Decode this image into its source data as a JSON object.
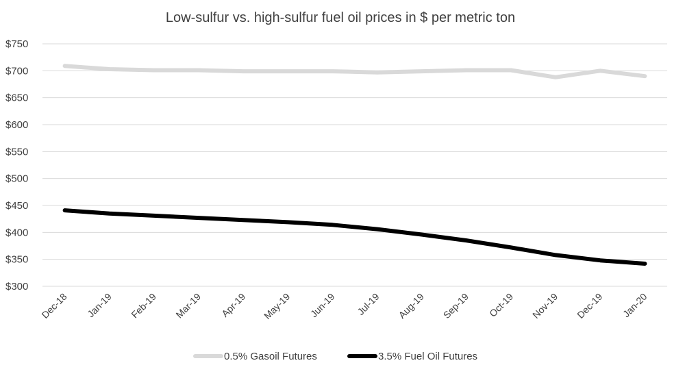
{
  "chart_data": {
    "type": "line",
    "title": "Low-sulfur vs. high-sulfur fuel oil prices in $ per metric ton",
    "xlabel": "",
    "ylabel": "",
    "categories": [
      "Dec-18",
      "Jan-19",
      "Feb-19",
      "Mar-19",
      "Apr-19",
      "May-19",
      "Jun-19",
      "Jul-19",
      "Aug-19",
      "Sep-19",
      "Oct-19",
      "Nov-19",
      "Dec-19",
      "Jan-20"
    ],
    "y_ticks": [
      "$300",
      "$350",
      "$400",
      "$450",
      "$500",
      "$550",
      "$600",
      "$650",
      "$700",
      "$750"
    ],
    "ylim": [
      300,
      750
    ],
    "grid": true,
    "legend_position": "bottom",
    "series": [
      {
        "name": "0.5% Gasoil Futures",
        "color": "#d9d9d9",
        "values": [
          709,
          703,
          701,
          701,
          699,
          699,
          699,
          697,
          699,
          701,
          701,
          688,
          700,
          690
        ]
      },
      {
        "name": "3.5% Fuel Oil Futures",
        "color": "#000000",
        "values": [
          441,
          435,
          431,
          427,
          423,
          419,
          414,
          406,
          396,
          385,
          372,
          358,
          348,
          342
        ]
      }
    ]
  }
}
